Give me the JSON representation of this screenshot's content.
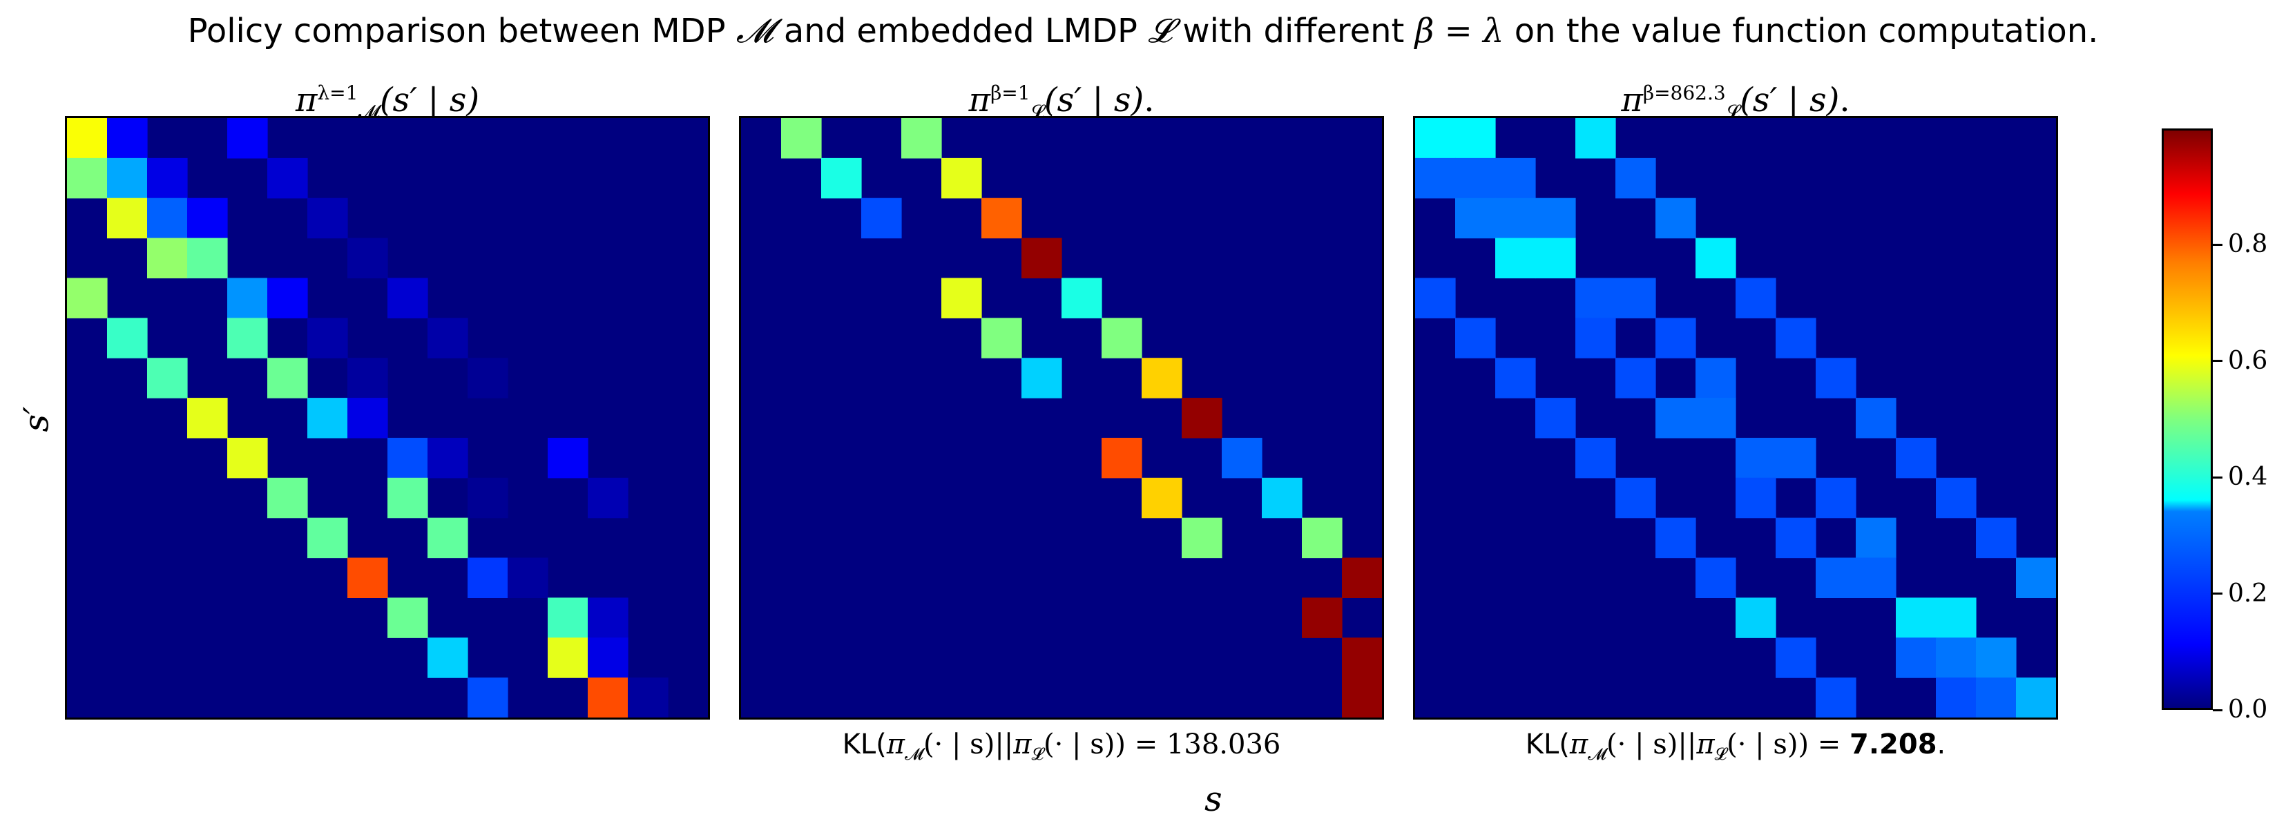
{
  "figure": {
    "suptitle_pre": "Policy comparison between MDP ",
    "suptitle_M": "𝓜",
    "suptitle_mid": " and embedded LMDP ",
    "suptitle_L": "𝓛",
    "suptitle_mid2": " with different ",
    "suptitle_eq": "β = λ",
    "suptitle_post": " on the value function computation.",
    "ylabel": "s′",
    "xlabel": "s"
  },
  "panels": [
    {
      "title_pi": "π",
      "title_sub": "𝓜",
      "title_sup": "λ=1",
      "title_arg": "(s′ | s)",
      "title_end": ""
    },
    {
      "title_pi": "π",
      "title_sub": "𝓛",
      "title_sup": "β=1",
      "title_arg": "(s′ | s)",
      "title_end": ".",
      "kl_pre": "KL(",
      "kl_pi1": "π",
      "kl_sub1": "𝓜",
      "kl_arg1": "(· | s)||",
      "kl_pi2": "π",
      "kl_sub2": "𝓛",
      "kl_arg2": "(· | s)) = ",
      "kl_value": "138.036",
      "kl_end": ""
    },
    {
      "title_pi": "π",
      "title_sub": "𝓛",
      "title_sup": "β=862.3",
      "title_arg": "(s′ | s)",
      "title_end": ".",
      "kl_pre": "KL(",
      "kl_pi1": "π",
      "kl_sub1": "𝓜",
      "kl_arg1": "(· | s)||",
      "kl_pi2": "π",
      "kl_sub2": "𝓛",
      "kl_arg2": "(· | s)) = ",
      "kl_value": "7.208",
      "kl_end": "."
    }
  ],
  "colorbar": {
    "ticks": [
      {
        "label": "0.0",
        "value": 0.0
      },
      {
        "label": "0.2",
        "value": 0.2
      },
      {
        "label": "0.4",
        "value": 0.4
      },
      {
        "label": "0.6",
        "value": 0.6
      },
      {
        "label": "0.8",
        "value": 0.8
      }
    ]
  },
  "chart_data": {
    "type": "heatmap",
    "colormap": "jet",
    "vmin": 0.0,
    "vmax": 1.0,
    "grid_cols": 16,
    "grid_rows": 15,
    "background_value": 0.0,
    "panels": [
      {
        "cells": [
          [
            0,
            0,
            0.62
          ],
          [
            0,
            1,
            0.12
          ],
          [
            0,
            4,
            0.12
          ],
          [
            1,
            0,
            0.5
          ],
          [
            1,
            1,
            0.29
          ],
          [
            1,
            2,
            0.1
          ],
          [
            1,
            5,
            0.08
          ],
          [
            2,
            1,
            0.6
          ],
          [
            2,
            2,
            0.22
          ],
          [
            2,
            3,
            0.12
          ],
          [
            2,
            6,
            0.05
          ],
          [
            3,
            2,
            0.52
          ],
          [
            3,
            3,
            0.47
          ],
          [
            3,
            7,
            0.03
          ],
          [
            4,
            0,
            0.52
          ],
          [
            4,
            4,
            0.27
          ],
          [
            4,
            5,
            0.12
          ],
          [
            4,
            8,
            0.08
          ],
          [
            5,
            1,
            0.43
          ],
          [
            5,
            4,
            0.45
          ],
          [
            5,
            6,
            0.04
          ],
          [
            5,
            9,
            0.04
          ],
          [
            6,
            2,
            0.45
          ],
          [
            6,
            5,
            0.48
          ],
          [
            6,
            7,
            0.03
          ],
          [
            6,
            10,
            0.02
          ],
          [
            7,
            3,
            0.6
          ],
          [
            7,
            6,
            0.32
          ],
          [
            7,
            7,
            0.1
          ],
          [
            8,
            4,
            0.6
          ],
          [
            8,
            8,
            0.2
          ],
          [
            8,
            9,
            0.06
          ],
          [
            8,
            12,
            0.12
          ],
          [
            9,
            5,
            0.48
          ],
          [
            9,
            8,
            0.47
          ],
          [
            9,
            10,
            0.02
          ],
          [
            9,
            13,
            0.05
          ],
          [
            10,
            6,
            0.47
          ],
          [
            10,
            9,
            0.47
          ],
          [
            11,
            7,
            0.8
          ],
          [
            11,
            10,
            0.18
          ],
          [
            11,
            11,
            0.03
          ],
          [
            12,
            8,
            0.48
          ],
          [
            12,
            12,
            0.44
          ],
          [
            12,
            13,
            0.07
          ],
          [
            13,
            9,
            0.33
          ],
          [
            13,
            12,
            0.6
          ],
          [
            13,
            13,
            0.1
          ],
          [
            14,
            10,
            0.2
          ],
          [
            14,
            13,
            0.8
          ],
          [
            14,
            14,
            0.03
          ]
        ]
      },
      {
        "cells": [
          [
            0,
            1,
            0.5
          ],
          [
            0,
            4,
            0.5
          ],
          [
            1,
            2,
            0.4
          ],
          [
            1,
            5,
            0.6
          ],
          [
            2,
            3,
            0.2
          ],
          [
            2,
            6,
            0.78
          ],
          [
            3,
            7,
            0.98
          ],
          [
            4,
            5,
            0.6
          ],
          [
            4,
            8,
            0.4
          ],
          [
            5,
            6,
            0.5
          ],
          [
            5,
            9,
            0.5
          ],
          [
            6,
            7,
            0.33
          ],
          [
            6,
            10,
            0.67
          ],
          [
            7,
            11,
            0.98
          ],
          [
            8,
            9,
            0.8
          ],
          [
            8,
            12,
            0.22
          ],
          [
            9,
            10,
            0.67
          ],
          [
            9,
            13,
            0.33
          ],
          [
            10,
            11,
            0.5
          ],
          [
            10,
            14,
            0.5
          ],
          [
            11,
            15,
            0.98
          ],
          [
            12,
            14,
            0.98
          ],
          [
            13,
            15,
            0.98
          ],
          [
            14,
            15,
            0.98
          ]
        ]
      },
      {
        "cells": [
          [
            0,
            0,
            0.37
          ],
          [
            0,
            1,
            0.37
          ],
          [
            0,
            4,
            0.35
          ],
          [
            1,
            0,
            0.22
          ],
          [
            1,
            1,
            0.22
          ],
          [
            1,
            2,
            0.22
          ],
          [
            1,
            5,
            0.22
          ],
          [
            2,
            1,
            0.24
          ],
          [
            2,
            2,
            0.24
          ],
          [
            2,
            3,
            0.24
          ],
          [
            2,
            6,
            0.24
          ],
          [
            3,
            2,
            0.36
          ],
          [
            3,
            3,
            0.36
          ],
          [
            3,
            7,
            0.36
          ],
          [
            4,
            0,
            0.2
          ],
          [
            4,
            4,
            0.21
          ],
          [
            4,
            5,
            0.21
          ],
          [
            4,
            8,
            0.2
          ],
          [
            5,
            1,
            0.2
          ],
          [
            5,
            4,
            0.2
          ],
          [
            5,
            6,
            0.2
          ],
          [
            5,
            9,
            0.2
          ],
          [
            6,
            2,
            0.2
          ],
          [
            6,
            5,
            0.2
          ],
          [
            6,
            7,
            0.22
          ],
          [
            6,
            10,
            0.2
          ],
          [
            7,
            3,
            0.2
          ],
          [
            7,
            6,
            0.23
          ],
          [
            7,
            7,
            0.23
          ],
          [
            7,
            11,
            0.22
          ],
          [
            8,
            4,
            0.2
          ],
          [
            8,
            8,
            0.22
          ],
          [
            8,
            9,
            0.22
          ],
          [
            8,
            12,
            0.2
          ],
          [
            9,
            5,
            0.2
          ],
          [
            9,
            8,
            0.2
          ],
          [
            9,
            10,
            0.2
          ],
          [
            9,
            13,
            0.2
          ],
          [
            10,
            6,
            0.2
          ],
          [
            10,
            9,
            0.2
          ],
          [
            10,
            11,
            0.24
          ],
          [
            10,
            14,
            0.2
          ],
          [
            11,
            7,
            0.2
          ],
          [
            11,
            10,
            0.22
          ],
          [
            11,
            11,
            0.22
          ],
          [
            11,
            15,
            0.25
          ],
          [
            12,
            8,
            0.33
          ],
          [
            12,
            12,
            0.35
          ],
          [
            12,
            13,
            0.35
          ],
          [
            13,
            9,
            0.2
          ],
          [
            13,
            12,
            0.22
          ],
          [
            13,
            13,
            0.24
          ],
          [
            13,
            14,
            0.26
          ],
          [
            14,
            10,
            0.2
          ],
          [
            14,
            13,
            0.2
          ],
          [
            14,
            14,
            0.22
          ],
          [
            14,
            15,
            0.3
          ]
        ]
      }
    ]
  }
}
